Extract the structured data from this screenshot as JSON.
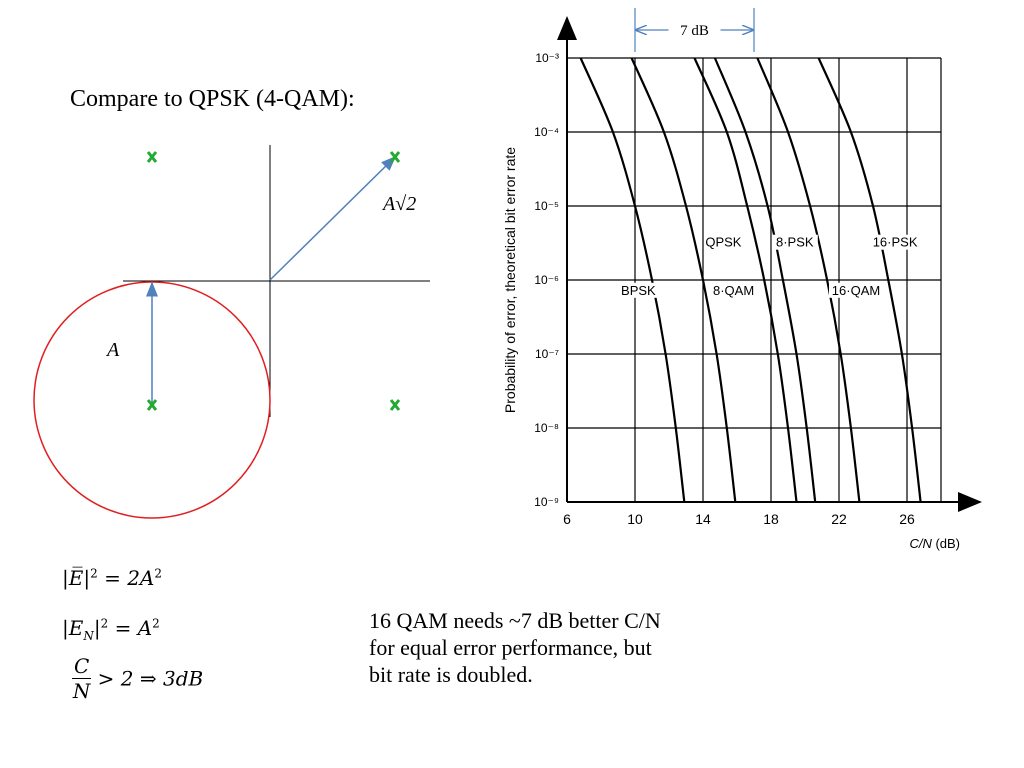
{
  "slide": {
    "title": "Compare to QPSK (4-QAM):",
    "constellation": {
      "label_A": "A",
      "label_A_sqrt2": "A√2",
      "marker": "x"
    },
    "equations": {
      "eq1_lhs": "|E̅|",
      "eq1_rhs": "= 2A",
      "eq2_lhs": "|E",
      "eq2_sub": "N",
      "eq2_rhs": "= A",
      "exp": "2",
      "eq3_num": "C",
      "eq3_den": "N",
      "eq3_rhs": "> 2 ⇒ 3dB"
    },
    "caption_lines": [
      "16 QAM needs ~7 dB better C/N",
      "for equal error performance, but",
      "bit rate is doubled."
    ]
  },
  "colors": {
    "constellation_point": "#22aa33",
    "arrow": "#4f81bd",
    "circle": "#e02020",
    "annotation": "#4f81bd"
  },
  "chart_data": {
    "type": "line",
    "ylabel": "Probability of error,  theoretical bit error rate",
    "xlabel_italic": "C/N",
    "xlabel_unit": "(dB)",
    "x_ticks": [
      "6",
      "10",
      "14",
      "18",
      "22",
      "26"
    ],
    "y_ticks": [
      "10⁻³",
      "10⁻⁴",
      "10⁻⁵",
      "10⁻⁶",
      "10⁻⁷",
      "10⁻⁸",
      "10⁻⁹"
    ],
    "xlim": [
      6,
      29
    ],
    "ylim_log10": [
      -9,
      -3
    ],
    "y_scale": "log",
    "grid": true,
    "annotation": "7 dB",
    "annotation_range": [
      10,
      17
    ],
    "series": [
      {
        "name": "BPSK",
        "x": [
          6.8,
          8.7,
          10.0,
          11.0,
          11.8,
          12.4,
          12.9
        ],
        "log10_y": [
          -3,
          -4,
          -5,
          -6,
          -7,
          -8,
          -9
        ]
      },
      {
        "name": "QPSK",
        "x": [
          9.8,
          11.7,
          13.0,
          14.0,
          14.8,
          15.4,
          15.9
        ],
        "log10_y": [
          -3,
          -4,
          -5,
          -6,
          -7,
          -8,
          -9
        ]
      },
      {
        "name": "8-QAM",
        "x": [
          13.5,
          15.4,
          16.6,
          17.6,
          18.4,
          19.0,
          19.5
        ],
        "log10_y": [
          -3,
          -4,
          -5,
          -6,
          -7,
          -8,
          -9
        ]
      },
      {
        "name": "8-PSK",
        "x": [
          14.7,
          16.5,
          17.8,
          18.7,
          19.5,
          20.1,
          20.6
        ],
        "log10_y": [
          -3,
          -4,
          -5,
          -6,
          -7,
          -8,
          -9
        ]
      },
      {
        "name": "16-QAM",
        "x": [
          17.2,
          19.0,
          20.3,
          21.3,
          22.1,
          22.7,
          23.2
        ],
        "log10_y": [
          -3,
          -4,
          -5,
          -6,
          -7,
          -8,
          -9
        ]
      },
      {
        "name": "16-PSK",
        "x": [
          20.8,
          22.7,
          24.0,
          24.9,
          25.7,
          26.3,
          26.8
        ],
        "log10_y": [
          -3,
          -4,
          -5,
          -6,
          -7,
          -8,
          -9
        ]
      }
    ],
    "curve_labels": [
      {
        "name": "QPSK",
        "x": 15.2,
        "log10_y": -5.55
      },
      {
        "name": "8·PSK",
        "x": 19.4,
        "log10_y": -5.55
      },
      {
        "name": "16·PSK",
        "x": 25.3,
        "log10_y": -5.55
      },
      {
        "name": "BPSK",
        "x": 10.2,
        "log10_y": -6.2
      },
      {
        "name": "8·QAM",
        "x": 15.8,
        "log10_y": -6.2
      },
      {
        "name": "16·QAM",
        "x": 23.0,
        "log10_y": -6.2
      }
    ]
  }
}
